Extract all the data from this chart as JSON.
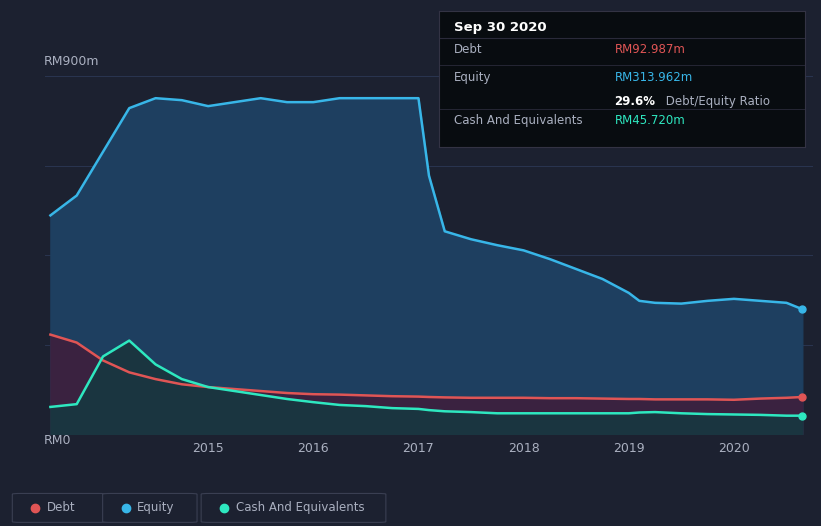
{
  "bg_color": "#1c2130",
  "plot_bg_color": "#1c2130",
  "ylabel_top": "RM900m",
  "ylabel_bottom": "RM0",
  "x_ticks": [
    2015,
    2016,
    2017,
    2018,
    2019,
    2020
  ],
  "equity_color": "#38b6e8",
  "equity_fill_color": "#1e3f60",
  "debt_color": "#e05555",
  "debt_fill_color": "#3a2240",
  "cash_color": "#2ee8c0",
  "cash_fill_color": "#1a3540",
  "grid_color": "#2a3550",
  "text_color": "#aab0c0",
  "tooltip_bg": "#080c10",
  "tooltip_border": "#333344",
  "title_text": "Sep 30 2020",
  "debt_label": "RM92.987m",
  "equity_label": "RM313.962m",
  "cash_label": "RM45.720m",
  "ratio_pct": "29.6%",
  "ratio_text": " Debt/Equity Ratio",
  "x_data": [
    2013.5,
    2013.75,
    2014.0,
    2014.25,
    2014.5,
    2014.75,
    2015.0,
    2015.25,
    2015.5,
    2015.75,
    2016.0,
    2016.25,
    2016.5,
    2016.75,
    2017.0,
    2017.1,
    2017.25,
    2017.5,
    2017.75,
    2018.0,
    2018.25,
    2018.5,
    2018.75,
    2019.0,
    2019.1,
    2019.25,
    2019.5,
    2019.75,
    2020.0,
    2020.25,
    2020.5,
    2020.65
  ],
  "equity_y": [
    550,
    600,
    710,
    820,
    845,
    840,
    825,
    835,
    845,
    835,
    835,
    845,
    845,
    845,
    845,
    650,
    510,
    490,
    475,
    462,
    440,
    415,
    390,
    355,
    335,
    330,
    328,
    335,
    340,
    335,
    330,
    314
  ],
  "debt_y": [
    250,
    230,
    185,
    155,
    138,
    125,
    118,
    113,
    108,
    103,
    100,
    99,
    97,
    95,
    94,
    93,
    92,
    91,
    91,
    91,
    90,
    90,
    89,
    88,
    88,
    87,
    87,
    87,
    86,
    89,
    91,
    93
  ],
  "cash_y": [
    68,
    75,
    195,
    235,
    175,
    138,
    118,
    108,
    98,
    88,
    80,
    73,
    70,
    65,
    63,
    60,
    57,
    55,
    52,
    52,
    52,
    52,
    52,
    52,
    54,
    55,
    52,
    50,
    49,
    48,
    46,
    46
  ]
}
